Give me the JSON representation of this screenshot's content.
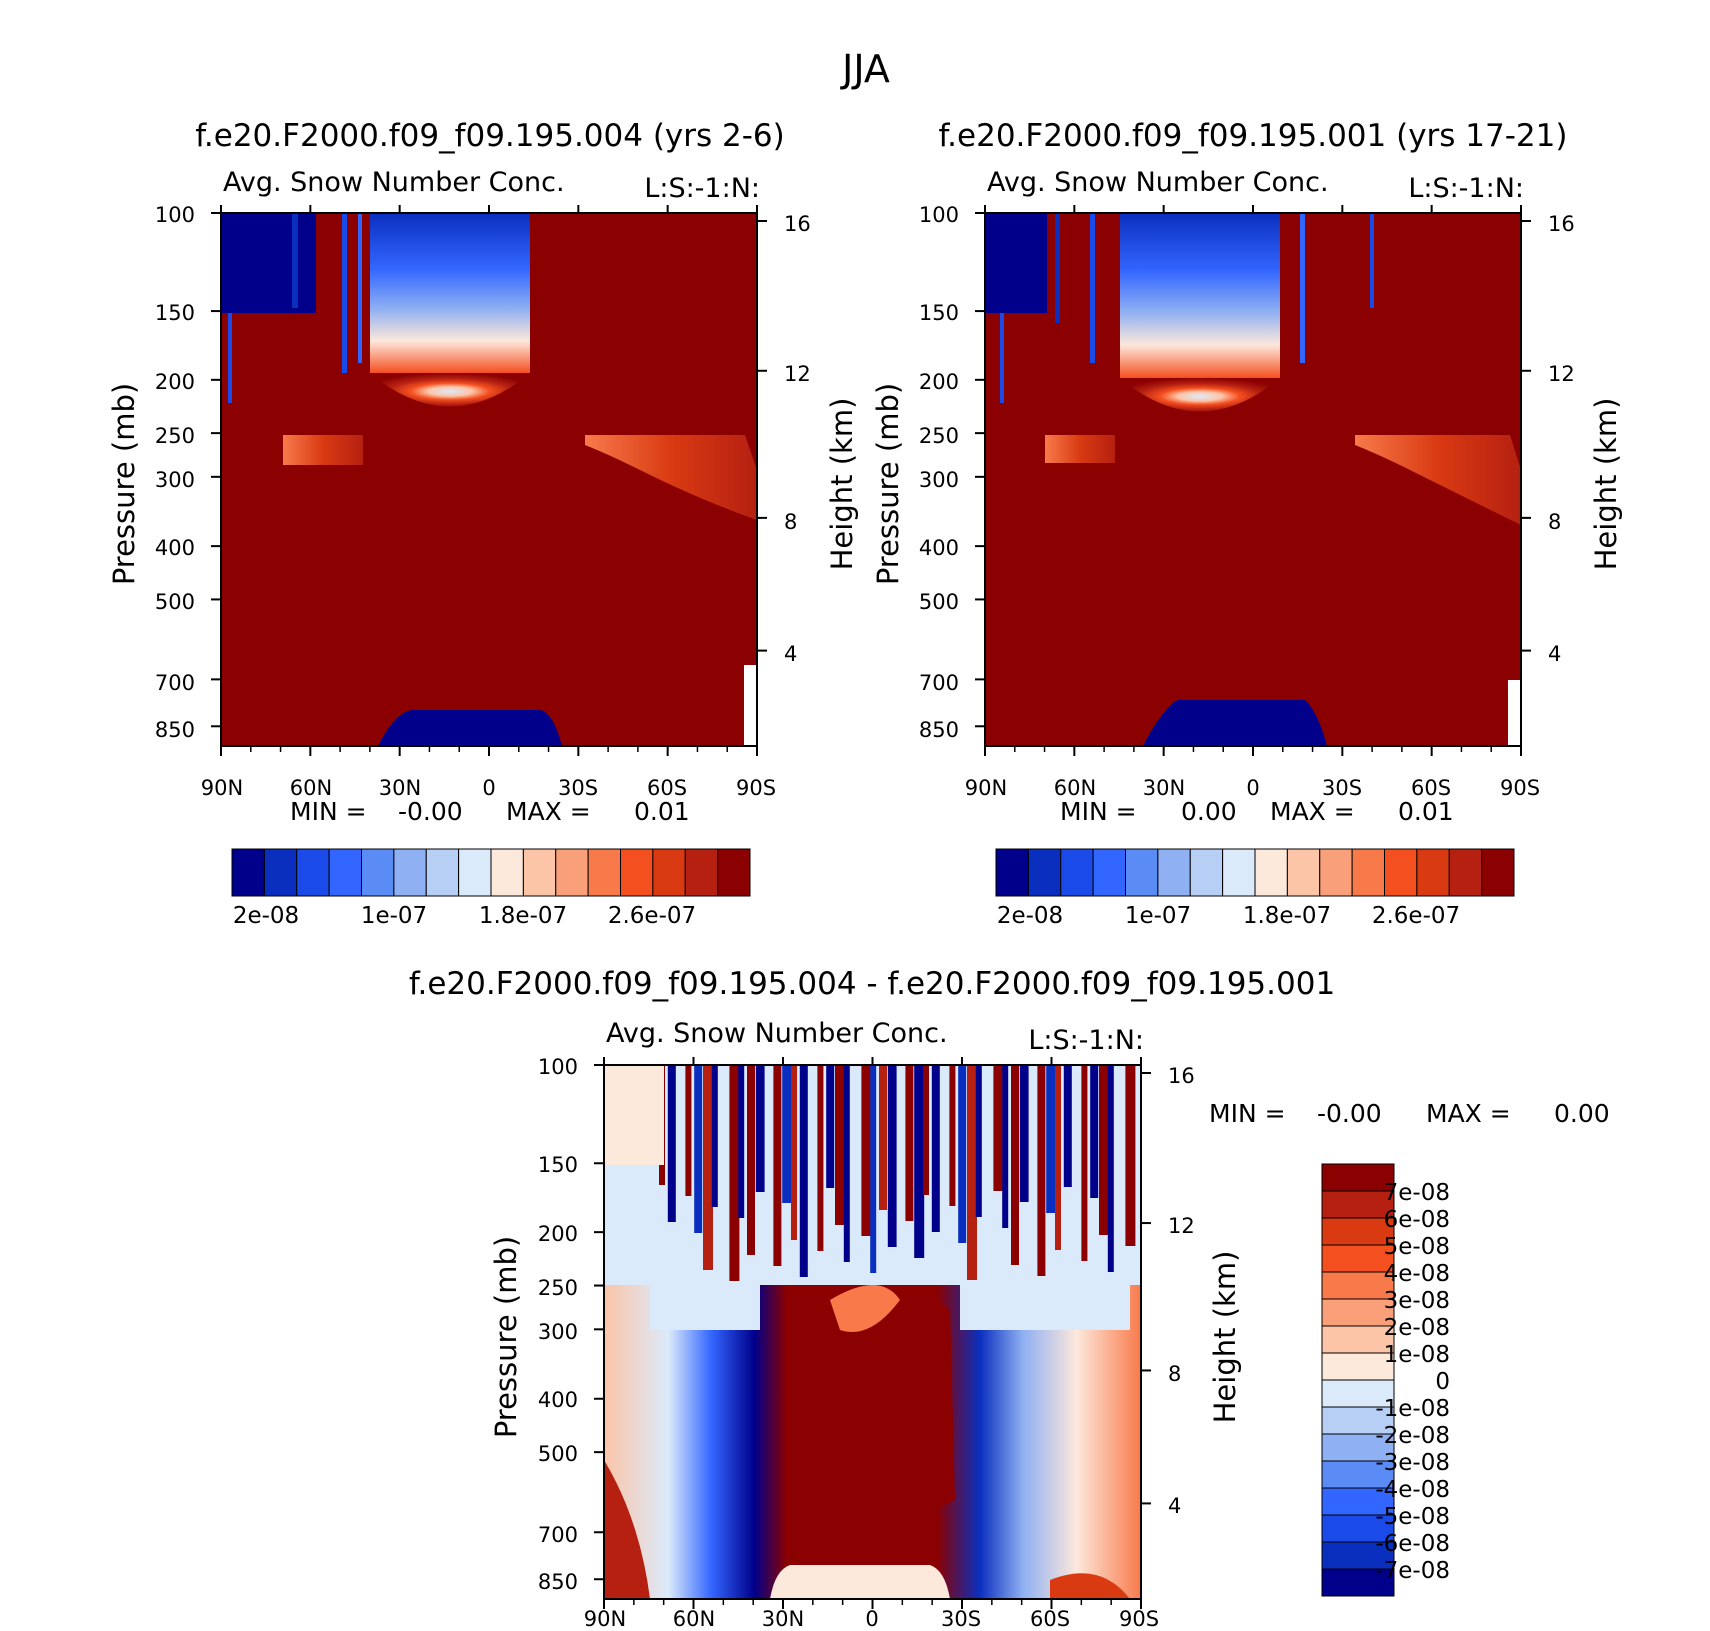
{
  "figure": {
    "main_title": "JJA"
  },
  "chart_data": [
    {
      "type": "heatmap",
      "title": "f.e20.F2000.f09_f09.195.004 (yrs 2-6)",
      "subtitle": "Avg. Snow Number Conc.",
      "corner_label": "L:S:-1:N:",
      "ylabel": "Pressure (mb)",
      "ylabel_right": "Height (km)",
      "x_ticks": [
        "90N",
        "60N",
        "30N",
        "0",
        "30S",
        "60S",
        "90S"
      ],
      "y_ticks": [
        "100",
        "150",
        "200",
        "250",
        "300",
        "400",
        "500",
        "700",
        "850"
      ],
      "y2_ticks": [
        "16",
        "12",
        "8",
        "4"
      ],
      "min_label": "MIN =",
      "min_value": "-0.00",
      "max_label": "MAX =",
      "max_value": "0.01",
      "colorbar_labels": [
        "2e-08",
        "1e-07",
        "1.8e-07",
        "2.6e-07"
      ],
      "colorbar_colors": [
        "#00008b",
        "#0a2fbf",
        "#1a4ae8",
        "#3366ff",
        "#5b8bf5",
        "#8fb0f2",
        "#b8cff5",
        "#dbeafb",
        "#fde8dc",
        "#fcc5a8",
        "#f9a07a",
        "#f87a4b",
        "#f44f1f",
        "#d93a12",
        "#b52011",
        "#8b0000"
      ]
    },
    {
      "type": "heatmap",
      "title": "f.e20.F2000.f09_f09.195.001 (yrs 17-21)",
      "subtitle": "Avg. Snow Number Conc.",
      "corner_label": "L:S:-1:N:",
      "ylabel": "Pressure (mb)",
      "ylabel_right": "Height (km)",
      "x_ticks": [
        "90N",
        "60N",
        "30N",
        "0",
        "30S",
        "60S",
        "90S"
      ],
      "y_ticks": [
        "100",
        "150",
        "200",
        "250",
        "300",
        "400",
        "500",
        "700",
        "850"
      ],
      "y2_ticks": [
        "16",
        "12",
        "8",
        "4"
      ],
      "min_label": "MIN =",
      "min_value": "0.00",
      "max_label": "MAX =",
      "max_value": "0.01",
      "colorbar_labels": [
        "2e-08",
        "1e-07",
        "1.8e-07",
        "2.6e-07"
      ],
      "colorbar_colors": [
        "#00008b",
        "#0a2fbf",
        "#1a4ae8",
        "#3366ff",
        "#5b8bf5",
        "#8fb0f2",
        "#b8cff5",
        "#dbeafb",
        "#fde8dc",
        "#fcc5a8",
        "#f9a07a",
        "#f87a4b",
        "#f44f1f",
        "#d93a12",
        "#b52011",
        "#8b0000"
      ]
    },
    {
      "type": "heatmap",
      "title": "f.e20.F2000.f09_f09.195.004 - f.e20.F2000.f09_f09.195.001",
      "subtitle": "Avg. Snow Number Conc.",
      "corner_label": "L:S:-1:N:",
      "ylabel": "Pressure (mb)",
      "ylabel_right": "Height (km)",
      "x_ticks": [
        "90N",
        "60N",
        "30N",
        "0",
        "30S",
        "60S",
        "90S"
      ],
      "y_ticks": [
        "100",
        "150",
        "200",
        "250",
        "300",
        "400",
        "500",
        "700",
        "850"
      ],
      "y2_ticks": [
        "16",
        "12",
        "8",
        "4"
      ],
      "min_label": "MIN =",
      "min_value": "-0.00",
      "max_label": "MAX =",
      "max_value": "0.00",
      "colorbar_labels": [
        "7e-08",
        "6e-08",
        "5e-08",
        "4e-08",
        "3e-08",
        "2e-08",
        "1e-08",
        "0",
        "-1e-08",
        "-2e-08",
        "-3e-08",
        "-4e-08",
        "-5e-08",
        "-6e-08",
        "-7e-08"
      ],
      "colorbar_colors": [
        "#8b0000",
        "#b52011",
        "#d93a12",
        "#f44f1f",
        "#f87a4b",
        "#f9a07a",
        "#fcc5a8",
        "#fde8dc",
        "#dbeafb",
        "#b8cff5",
        "#8fb0f2",
        "#5b8bf5",
        "#3366ff",
        "#1a4ae8",
        "#0a2fbf",
        "#00008b"
      ]
    }
  ]
}
